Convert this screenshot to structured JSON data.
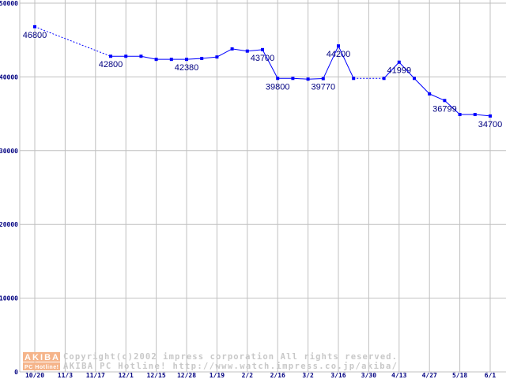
{
  "chart_data": {
    "type": "line",
    "title": "",
    "xlabel": "",
    "ylabel": "",
    "ylim": [
      0,
      50000
    ],
    "yticks": [
      "0",
      "10000",
      "20000",
      "30000",
      "40000",
      "50000"
    ],
    "ytick_values": [
      0,
      10000,
      20000,
      30000,
      40000,
      50000
    ],
    "xtick_labels": [
      "10/20",
      "11/3",
      "11/17",
      "12/1",
      "12/15",
      "12/28",
      "1/19",
      "2/2",
      "2/16",
      "3/2",
      "3/16",
      "3/30",
      "4/13",
      "4/27",
      "5/18",
      "6/1"
    ],
    "grid": true,
    "line_color": "#0000ff",
    "points": [
      {
        "week": 0,
        "value": 46800,
        "label": "46800"
      },
      {
        "week": 5,
        "value": 42800,
        "label": "42800"
      },
      {
        "week": 6,
        "value": 42800
      },
      {
        "week": 7,
        "value": 42800
      },
      {
        "week": 8,
        "value": 42380
      },
      {
        "week": 9,
        "value": 42380
      },
      {
        "week": 10,
        "value": 42380,
        "label": "42380"
      },
      {
        "week": 11,
        "value": 42500
      },
      {
        "week": 12,
        "value": 42700
      },
      {
        "week": 13,
        "value": 43800
      },
      {
        "week": 14,
        "value": 43500
      },
      {
        "week": 15,
        "value": 43700,
        "label": "43700"
      },
      {
        "week": 16,
        "value": 39800,
        "label": "39800"
      },
      {
        "week": 17,
        "value": 39800
      },
      {
        "week": 18,
        "value": 39700
      },
      {
        "week": 19,
        "value": 39770,
        "label": "39770"
      },
      {
        "week": 20,
        "value": 44200,
        "label": "44200"
      },
      {
        "week": 21,
        "value": 39800
      },
      {
        "week": 23,
        "value": 39800
      },
      {
        "week": 24,
        "value": 41999,
        "label": "41999"
      },
      {
        "week": 25,
        "value": 39800
      },
      {
        "week": 26,
        "value": 37700
      },
      {
        "week": 27,
        "value": 36799,
        "label": "36799"
      },
      {
        "week": 28,
        "value": 34900
      },
      {
        "week": 29,
        "value": 34900
      },
      {
        "week": 30,
        "value": 34700,
        "label": "34700"
      }
    ],
    "dotted_segments": [
      [
        0,
        5
      ],
      [
        21,
        23
      ]
    ]
  },
  "watermark": {
    "logo_top": "AKIBA",
    "logo_bottom": "PC Hotline!",
    "line1": "Copyright(c)2002 impress corporation All rights reserved.",
    "line2": "AKIBA PC Hotline!  http://www.watch.impress.co.jp/akiba/"
  }
}
